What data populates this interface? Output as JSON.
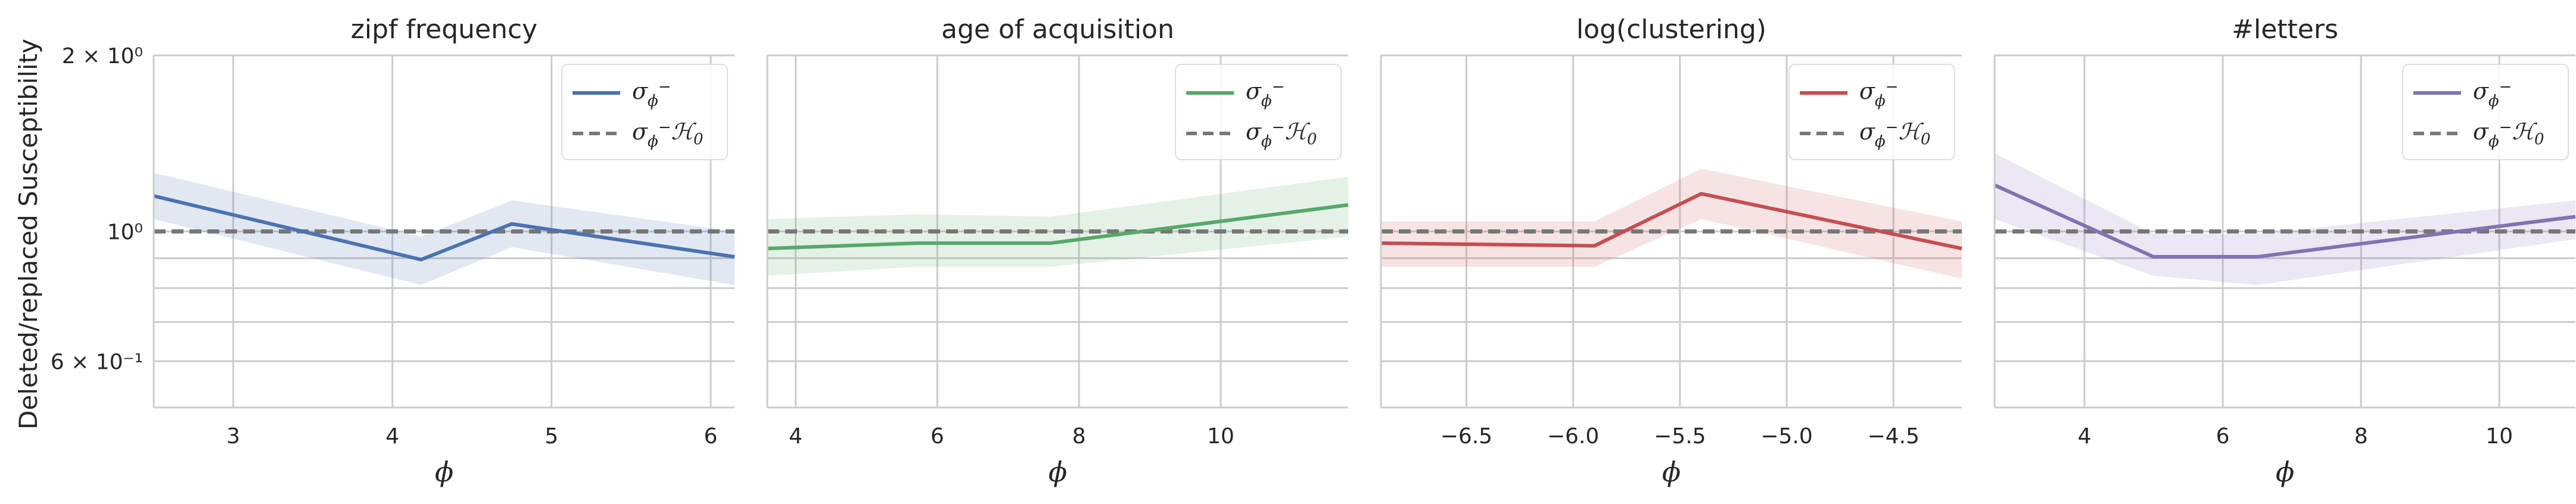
{
  "figure": {
    "ylabel": "Deleted/replaced Susceptibility",
    "ytick_labels": {
      "top": "2 × 10⁰",
      "mid": "10⁰",
      "low": "6 × 10⁻¹"
    }
  },
  "chart_data": [
    {
      "type": "line",
      "title": "zipf frequency",
      "xlabel": "ϕ",
      "xlim": [
        2.5,
        6.15
      ],
      "xticks": [
        3,
        4,
        5,
        6
      ],
      "xtick_labels": [
        "3",
        "4",
        "5",
        "6"
      ],
      "yscale": "log",
      "ylim": [
        0.5,
        2.0
      ],
      "yticks": [
        2.0,
        1.0,
        0.6
      ],
      "grid": true,
      "color": "#4c72b0",
      "series": [
        {
          "name": "σϕ⁻",
          "x": [
            2.5,
            4.18,
            4.75,
            6.15
          ],
          "values": [
            1.15,
            0.895,
            1.03,
            0.905
          ]
        },
        {
          "name": "σϕ⁻ℋ₀",
          "x": [
            2.5,
            6.15
          ],
          "values": [
            1.0,
            1.0
          ],
          "style": "dashed"
        }
      ],
      "band": {
        "x": [
          2.5,
          4.18,
          4.75,
          6.15
        ],
        "lower": [
          1.05,
          0.81,
          0.94,
          0.81
        ],
        "upper": [
          1.26,
          0.98,
          1.13,
          1.0
        ]
      },
      "legend": {
        "placement": "top-right",
        "entries": [
          "σ",
          "σ"
        ]
      }
    },
    {
      "type": "line",
      "title": "age of acquisition",
      "xlabel": "ϕ",
      "xlim": [
        3.6,
        11.8
      ],
      "xticks": [
        4,
        6,
        8,
        10
      ],
      "xtick_labels": [
        "4",
        "6",
        "8",
        "10"
      ],
      "yscale": "log",
      "ylim": [
        0.5,
        2.0
      ],
      "grid": true,
      "color": "#55a868",
      "series": [
        {
          "name": "σϕ⁻",
          "x": [
            3.6,
            5.7,
            7.6,
            11.8
          ],
          "values": [
            0.935,
            0.955,
            0.955,
            1.11
          ]
        },
        {
          "name": "σϕ⁻ℋ₀",
          "x": [
            3.6,
            11.8
          ],
          "values": [
            1.0,
            1.0
          ],
          "style": "dashed"
        }
      ],
      "band": {
        "x": [
          3.6,
          5.7,
          7.6,
          11.8
        ],
        "lower": [
          0.84,
          0.87,
          0.87,
          0.98
        ],
        "upper": [
          1.05,
          1.07,
          1.06,
          1.24
        ]
      },
      "legend": {
        "placement": "top-right",
        "entries": [
          "σ",
          "σ"
        ]
      }
    },
    {
      "type": "line",
      "title": "log(clustering)",
      "xlabel": "ϕ",
      "xlim": [
        -6.9,
        -4.18
      ],
      "xticks": [
        -6.5,
        -6.0,
        -5.5,
        -5.0,
        -4.5
      ],
      "xtick_labels": [
        "−6.5",
        "−6.0",
        "−5.5",
        "−5.0",
        "−4.5"
      ],
      "yscale": "log",
      "ylim": [
        0.5,
        2.0
      ],
      "grid": true,
      "color": "#c44e52",
      "series": [
        {
          "name": "σϕ⁻",
          "x": [
            -6.9,
            -5.9,
            -5.4,
            -4.18
          ],
          "values": [
            0.955,
            0.945,
            1.16,
            0.935
          ]
        },
        {
          "name": "σϕ⁻ℋ₀",
          "x": [
            -6.9,
            -4.18
          ],
          "values": [
            1.0,
            1.0
          ],
          "style": "dashed"
        }
      ],
      "band": {
        "x": [
          -6.9,
          -5.9,
          -5.4,
          -4.18
        ],
        "lower": [
          0.87,
          0.87,
          1.05,
          0.83
        ],
        "upper": [
          1.04,
          1.04,
          1.28,
          1.04
        ]
      },
      "legend": {
        "placement": "top-right",
        "entries": [
          "σ",
          "σ"
        ]
      }
    },
    {
      "type": "line",
      "title": "#letters",
      "xlabel": "ϕ",
      "xlim": [
        2.7,
        11.1
      ],
      "xticks": [
        4,
        6,
        8,
        10
      ],
      "xtick_labels": [
        "4",
        "6",
        "8",
        "10"
      ],
      "yscale": "log",
      "ylim": [
        0.5,
        2.0
      ],
      "grid": true,
      "color": "#8172b2",
      "series": [
        {
          "name": "σϕ⁻",
          "x": [
            2.7,
            5.0,
            6.5,
            11.1
          ],
          "values": [
            1.2,
            0.905,
            0.905,
            1.06
          ]
        },
        {
          "name": "σϕ⁻ℋ₀",
          "x": [
            2.7,
            11.1
          ],
          "values": [
            1.0,
            1.0
          ],
          "style": "dashed"
        }
      ],
      "band": {
        "x": [
          2.7,
          5.0,
          6.5,
          11.1
        ],
        "lower": [
          1.05,
          0.84,
          0.81,
          0.97
        ],
        "upper": [
          1.36,
          0.99,
          0.99,
          1.13
        ]
      },
      "legend": {
        "placement": "top-right",
        "entries": [
          "σ",
          "σ"
        ]
      }
    }
  ],
  "style": {
    "axis_color": "#cccccc",
    "grid_color": "#cccccc",
    "band_color": "#b0b0c8",
    "baseline_color": "#777777"
  }
}
